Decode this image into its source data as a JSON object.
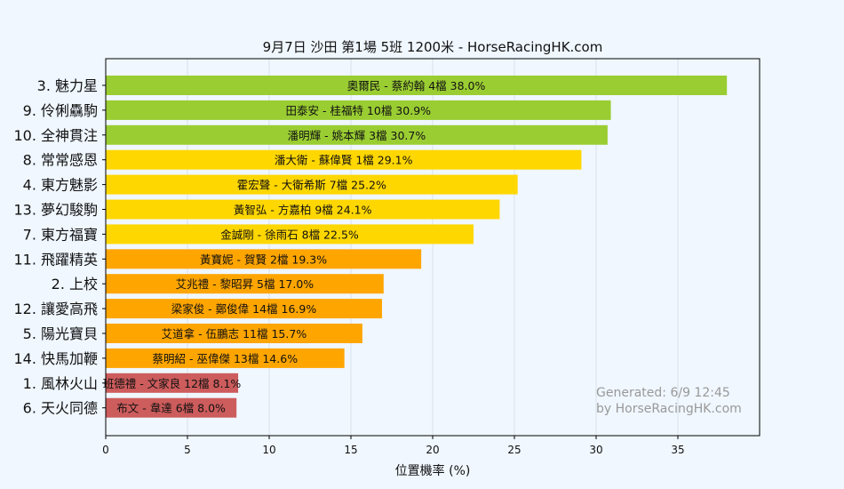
{
  "chart_data": {
    "type": "bar",
    "orientation": "horizontal",
    "title": "9月7日  沙田  第1場  5班  1200米 - HorseRacingHK.com",
    "xlabel": "位置機率 (%)",
    "ylabel": "",
    "xlim": [
      0,
      40
    ],
    "xticks": [
      0,
      5,
      10,
      15,
      20,
      25,
      30,
      35
    ],
    "grid": true,
    "categories": [
      "3. 魅力星",
      "9. 伶俐驫駒",
      "10. 全神貫注",
      "8. 常常感恩",
      "4. 東方魅影",
      "13. 夢幻駿駒",
      "7. 東方福寶",
      "11. 飛躍精英",
      "2. 上校",
      "12. 讓愛高飛",
      "5. 陽光寶貝",
      "14. 快馬加鞭",
      "1. 風林火山",
      "6. 天火同德"
    ],
    "values": [
      38.0,
      30.9,
      30.7,
      29.1,
      25.2,
      24.1,
      22.5,
      19.3,
      17.0,
      16.9,
      15.7,
      14.6,
      8.1,
      8.0
    ],
    "bar_labels": [
      "奧爾民 - 蔡約翰 4檔  38.0%",
      "田泰安 - 桂福特 10檔  30.9%",
      "潘明輝 - 姚本輝 3檔  30.7%",
      "潘大衛 - 蘇偉賢 1檔  29.1%",
      "霍宏聲 - 大衛希斯 7檔  25.2%",
      "黃智弘 - 方嘉柏 9檔  24.1%",
      "金誠剛 - 徐雨石 8檔  22.5%",
      "黃寶妮 - 賀賢 2檔  19.3%",
      "艾兆禮 - 黎昭昇 5檔  17.0%",
      "梁家俊 - 鄭俊偉 14檔  16.9%",
      "艾道拿 - 伍鵬志 11檔  15.7%",
      "蔡明紹 - 巫偉傑 13檔  14.6%",
      "班德禮 - 文家良 12檔  8.1%",
      "布文 - 韋達 6檔  8.0%"
    ],
    "bar_colors": [
      "#9acd32",
      "#9acd32",
      "#9acd32",
      "#ffd700",
      "#ffd700",
      "#ffd700",
      "#ffd700",
      "#ffa500",
      "#ffa500",
      "#ffa500",
      "#ffa500",
      "#ffa500",
      "#cd5c5c",
      "#cd5c5c"
    ],
    "annotation": [
      "Generated: 6/9 12:45",
      "by HorseRacingHK.com"
    ]
  }
}
